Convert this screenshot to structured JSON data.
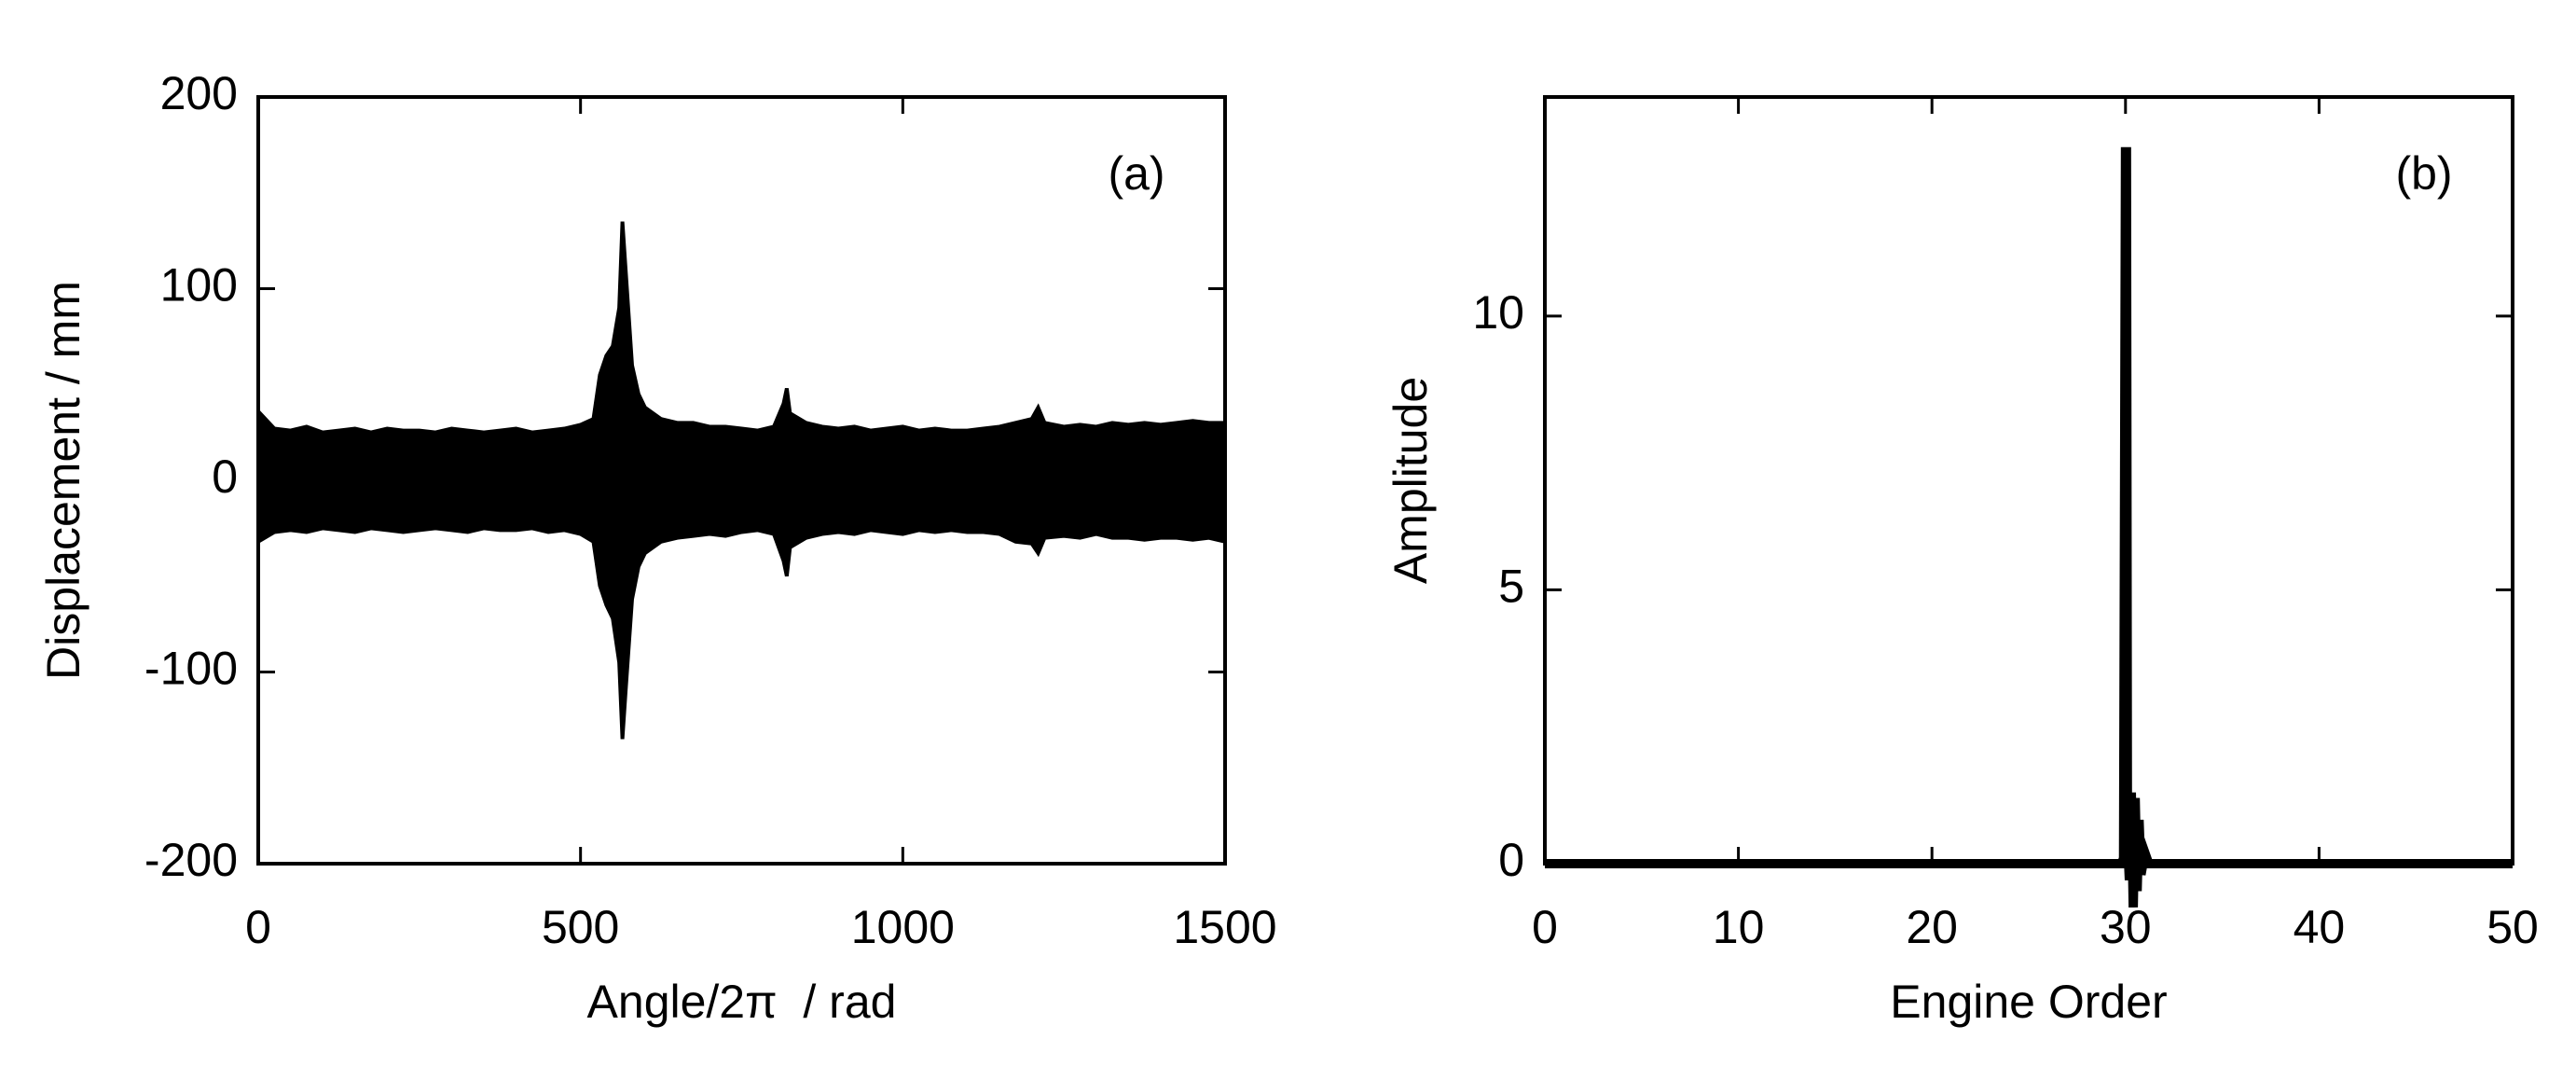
{
  "chart_data": [
    {
      "type": "area",
      "annotation": "(a)",
      "xlabel": "Angle/2π  / rad",
      "ylabel": "Displacement / mm",
      "x": [
        0,
        25,
        50,
        75,
        100,
        125,
        150,
        175,
        200,
        225,
        250,
        275,
        300,
        325,
        350,
        375,
        400,
        425,
        450,
        475,
        500,
        520,
        530,
        540,
        550,
        560,
        565,
        570,
        580,
        590,
        600,
        625,
        650,
        675,
        700,
        725,
        750,
        775,
        800,
        815,
        820,
        825,
        850,
        875,
        900,
        925,
        950,
        975,
        1000,
        1025,
        1050,
        1075,
        1100,
        1125,
        1150,
        1175,
        1200,
        1210,
        1220,
        1250,
        1275,
        1300,
        1325,
        1350,
        1375,
        1400,
        1425,
        1450,
        1475,
        1500
      ],
      "series": [
        {
          "color": "#000000",
          "values": [
            36,
            27,
            26,
            28,
            25,
            26,
            27,
            25,
            27,
            26,
            26,
            25,
            27,
            26,
            25,
            26,
            27,
            25,
            26,
            27,
            29,
            32,
            55,
            65,
            70,
            90,
            135,
            110,
            60,
            45,
            38,
            32,
            30,
            30,
            28,
            28,
            27,
            26,
            28,
            40,
            48,
            35,
            30,
            28,
            27,
            28,
            26,
            27,
            28,
            26,
            27,
            26,
            26,
            27,
            28,
            30,
            32,
            38,
            30,
            28,
            29,
            28,
            30,
            29,
            30,
            29,
            30,
            31,
            30,
            30
          ]
        },
        {
          "color": "#000000",
          "values": [
            -32,
            -27,
            -26,
            -27,
            -25,
            -26,
            -27,
            -25,
            -26,
            -27,
            -26,
            -25,
            -26,
            -27,
            -25,
            -26,
            -26,
            -25,
            -27,
            -26,
            -28,
            -32,
            -55,
            -65,
            -72,
            -95,
            -135,
            -110,
            -62,
            -45,
            -38,
            -32,
            -30,
            -29,
            -28,
            -29,
            -27,
            -26,
            -28,
            -42,
            -50,
            -35,
            -30,
            -28,
            -27,
            -28,
            -26,
            -27,
            -28,
            -26,
            -27,
            -26,
            -27,
            -27,
            -28,
            -32,
            -33,
            -38,
            -30,
            -29,
            -30,
            -28,
            -30,
            -30,
            -31,
            -30,
            -30,
            -31,
            -30,
            -32
          ]
        }
      ],
      "xlim": [
        0,
        1500
      ],
      "ylim": [
        -200,
        200
      ],
      "xticks": [
        0,
        500,
        1000,
        1500
      ],
      "yticks": [
        -200,
        -100,
        0,
        100,
        200
      ]
    },
    {
      "type": "line",
      "annotation": "(b)",
      "xlabel": "Engine Order",
      "ylabel": "Amplitude",
      "x": [
        0,
        29.8,
        29.9,
        30,
        30.05,
        30.1,
        30.2,
        30.3,
        30.4,
        30.5,
        30.6,
        30.7,
        30.8,
        31,
        31.2,
        50
      ],
      "series": [
        {
          "color": "#000000",
          "values": [
            0,
            0,
            0.1,
            13,
            13,
            0.5,
            -0.3,
            1.3,
            -0.8,
            1.2,
            -0.5,
            0.8,
            -0.2,
            0.2,
            0,
            0
          ]
        }
      ],
      "xlim": [
        0,
        50
      ],
      "ylim": [
        0,
        14
      ],
      "xticks": [
        0,
        10,
        20,
        30,
        40,
        50
      ],
      "yticks": [
        0,
        5,
        10
      ]
    }
  ]
}
